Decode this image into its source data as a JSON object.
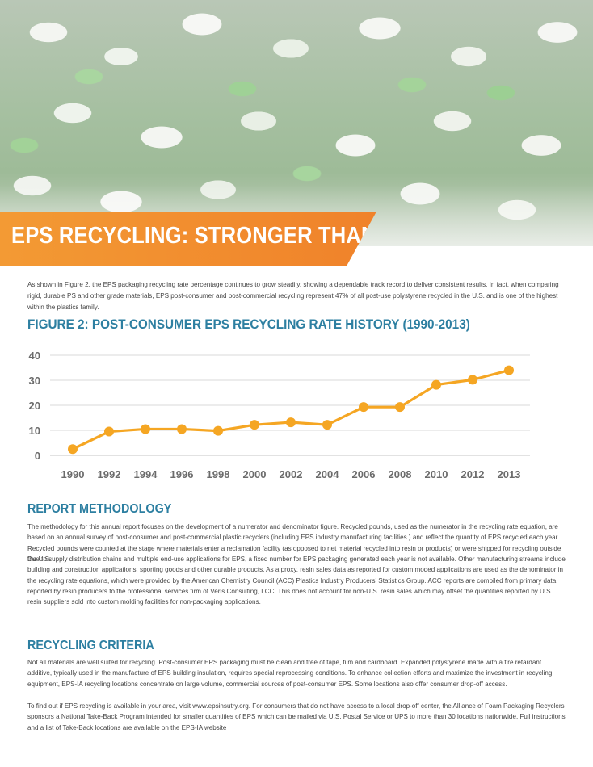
{
  "banner": {
    "title": "EPS RECYCLING: STRONGER THAN EVER"
  },
  "intro": {
    "text": "As shown in Figure 2, the EPS packaging recycling rate percentage continues to grow steadily, showing a dependable track record to deliver consistent results. In fact, when comparing rigid, durable PS and other grade materials, EPS post-consumer and post-commercial recycling represent 47% of all post-use polystyrene recycled in the U.S. and is one of the highest within the plastics family."
  },
  "figure": {
    "title": "FIGURE 2: POST-CONSUMER EPS RECYCLING RATE HISTORY (1990-2013)"
  },
  "chart_data": {
    "type": "line",
    "x": [
      "1990",
      "1992",
      "1994",
      "1996",
      "1998",
      "2000",
      "2002",
      "2004",
      "2006",
      "2008",
      "2010",
      "2012",
      "2013"
    ],
    "values": [
      2.5,
      9.5,
      10.5,
      10.5,
      9.8,
      12.2,
      13.2,
      12.2,
      19.3,
      19.3,
      28.2,
      30.2,
      34
    ],
    "yticks": [
      "0",
      "10",
      "20",
      "30",
      "40"
    ],
    "ylim": [
      0,
      40
    ],
    "grid": true,
    "line_color": "#f5a623",
    "grid_color": "#d8d8d8"
  },
  "methodology": {
    "title": "REPORT METHODOLOGY",
    "p1": "The methodology for this annual report focuses on the development of a numerator and denominator figure. Recycled pounds, used as the numerator in the recycling rate equation, are based on an annual survey of post-consumer and post-commercial plastic recyclers (including EPS industry manufacturing facilities ) and reflect the quantity of EPS recycled each year. Recycled pounds were counted at the stage where materials enter a reclamation facility (as opposed to net material recycled into resin or products) or were shipped for recycling outside the U.S.",
    "p2": "Due to supply distribution chains and multiple end-use applications for EPS, a fixed number for EPS packaging generated each year is not available. Other manufacturing streams include building and construction applications, sporting goods and other durable products. As a proxy, resin sales data as reported for custom moded applications are used as the denominator in the recycling rate equations, which were provided by the American Chemistry Council (ACC) Plastics Industry Producers' Statistics Group. ACC reports are compiled from primary data reported by resin producers to the professional services firm of Veris Consulting, LCC. This does not account for non-U.S. resin sales which may offset the quantities reported by U.S. resin suppliers sold into custom molding facilities for non-packaging applications."
  },
  "criteria": {
    "title": "RECYCLING CRITERIA",
    "p1": "Not all materials are well suited for recycling. Post-consumer EPS packaging must be clean and free of tape, film and cardboard. Expanded polystyrene made with a fire retardant additive, typically used in the manufacture of EPS building insulation, requires special reprocessing conditions. To enhance collection efforts and maximize the investment in recycling equipment, EPS-IA recycling locations concentrate on large volume, commercial sources of post-consumer EPS. Some locations also offer consumer drop-off access.",
    "p2": "To find out if EPS recycling is available in your area, visit www.epsinsutry.org. For consumers that do not have access to a local drop-off center, the Alliance of Foam Packaging Recyclers sponsors a National Take-Back Program intended for smaller quantities of EPS which can be mailed via U.S. Postal Service or UPS to more than 30 locations nationwide. Full instructions and a list of Take-Back locations are available on the EPS-IA website"
  }
}
